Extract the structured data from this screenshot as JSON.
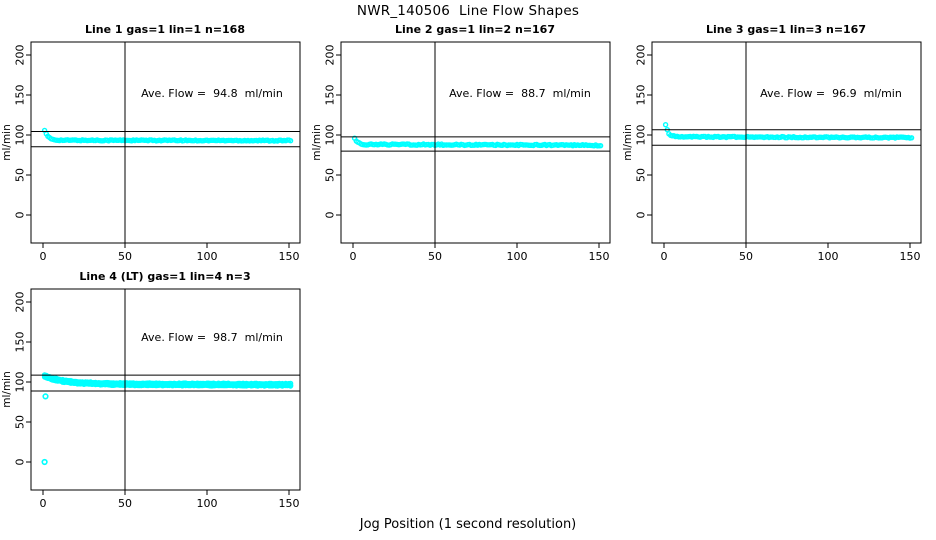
{
  "page": {
    "title": "NWR_140506  Line Flow Shapes",
    "xlabel": "Jog Position (1 second resolution)",
    "background": "#FFFFFF"
  },
  "style": {
    "point_color": "#00FFFF",
    "line_color": "#000000",
    "text_color": "#000000"
  },
  "axes": {
    "ylab": "ml/min",
    "x_ticks": [
      0,
      50,
      100,
      150
    ],
    "y_ticks": [
      0,
      50,
      100,
      150,
      200
    ],
    "xlim": [
      -7,
      157
    ],
    "ylim": [
      -35,
      217
    ]
  },
  "chart_data": [
    {
      "type": "scatter",
      "title": "Line 1 gas=1 lin=1 n=168",
      "annotation": "Ave. Flow =  94.8  ml/min",
      "ave_flow": 94.8,
      "n": 168,
      "gas": 1,
      "lin": 1,
      "ylab": "ml/min",
      "x_ticks": [
        0,
        50,
        100,
        150
      ],
      "y_ticks": [
        0,
        50,
        100,
        150,
        200
      ],
      "vline_x": 50,
      "hlines": [
        104.3,
        85.3
      ],
      "series_model": {
        "x_start": 1,
        "x_end": 151,
        "start_value": 106,
        "settle_value": 93.5,
        "decay_tau": 2.0,
        "noise": 0.65,
        "drift": -0.5,
        "passes": 1
      },
      "outliers": []
    },
    {
      "type": "scatter",
      "title": "Line 2 gas=1 lin=2 n=167",
      "annotation": "Ave. Flow =  88.7  ml/min",
      "ave_flow": 88.7,
      "n": 167,
      "gas": 1,
      "lin": 2,
      "ylab": "ml/min",
      "x_ticks": [
        0,
        50,
        100,
        150
      ],
      "y_ticks": [
        0,
        50,
        100,
        150,
        200
      ],
      "vline_x": 50,
      "hlines": [
        97.6,
        79.8
      ],
      "series_model": {
        "x_start": 1,
        "x_end": 151,
        "start_value": 96,
        "settle_value": 88.3,
        "decay_tau": 1.5,
        "noise": 0.8,
        "drift": -1.2,
        "passes": 1
      },
      "outliers": []
    },
    {
      "type": "scatter",
      "title": "Line 3 gas=1 lin=3 n=167",
      "annotation": "Ave. Flow =  96.9  ml/min",
      "ave_flow": 96.9,
      "n": 167,
      "gas": 1,
      "lin": 3,
      "ylab": "ml/min",
      "x_ticks": [
        0,
        50,
        100,
        150
      ],
      "y_ticks": [
        0,
        50,
        100,
        150,
        200
      ],
      "vline_x": 50,
      "hlines": [
        106.6,
        87.2
      ],
      "series_model": {
        "x_start": 1,
        "x_end": 151,
        "start_value": 113,
        "settle_value": 97.8,
        "decay_tau": 1.6,
        "noise": 0.7,
        "drift": -1.0,
        "passes": 1
      },
      "outliers": []
    },
    {
      "type": "scatter",
      "title": "Line 4 (LT) gas=1 lin=4 n=3",
      "annotation": "Ave. Flow =  98.7  ml/min",
      "ave_flow": 98.7,
      "n": 3,
      "gas": 1,
      "lin": 4,
      "ylab": "ml/min",
      "x_ticks": [
        0,
        50,
        100,
        150
      ],
      "y_ticks": [
        0,
        50,
        100,
        150,
        200
      ],
      "vline_x": 50,
      "hlines": [
        108.6,
        88.8
      ],
      "series_model": {
        "x_start": 1,
        "x_end": 151,
        "start_value": 107.5,
        "settle_value": 97.5,
        "decay_tau": 12,
        "noise": 0.5,
        "drift": -1.0,
        "passes": 3
      },
      "outliers": [
        [
          1,
          0
        ],
        [
          1.5,
          82
        ]
      ]
    }
  ]
}
